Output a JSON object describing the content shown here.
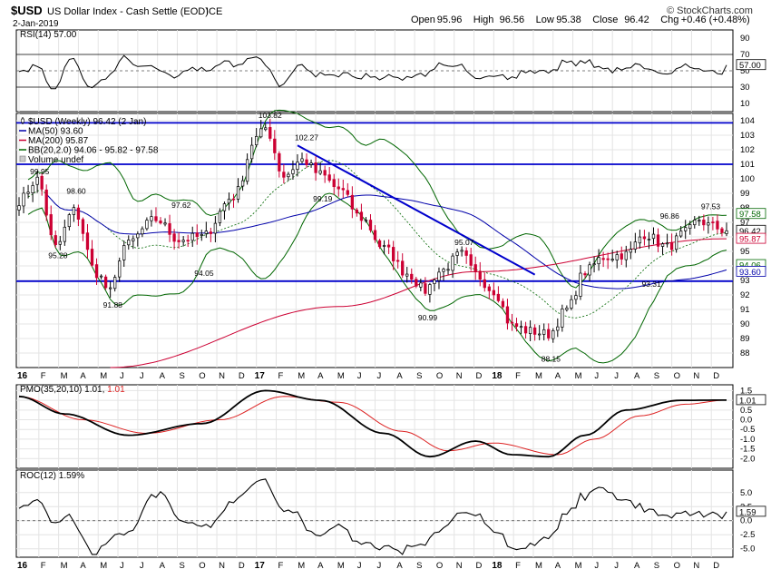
{
  "header": {
    "symbol": "$USD",
    "name": "US Dollar Index - Cash Settle (EOD)",
    "exchange": "ICE",
    "date": "2-Jan-2019",
    "site": "© StockCharts.com",
    "ohlc": [
      {
        "label": "Open",
        "value": "95.96"
      },
      {
        "label": "High",
        "value": "96.56"
      },
      {
        "label": "Low",
        "value": "95.38"
      },
      {
        "label": "Close",
        "value": "96.42"
      },
      {
        "label": "Chg",
        "value": "+0.46 (+0.48%)"
      }
    ]
  },
  "panels": {
    "rsi": {
      "label": "RSI(14) 57.00",
      "value_tag": "57.00"
    },
    "main": {
      "legend": [
        {
          "text": "$USD (Weekly) 96.42 (2 Jan)",
          "color": "#000000",
          "marker": "candle"
        },
        {
          "text": "MA(50) 93.60",
          "color": "#0000aa",
          "marker": "line"
        },
        {
          "text": "MA(200) 95.87",
          "color": "#cc0033",
          "marker": "line"
        },
        {
          "text": "BB(20,2.0) 94.06 - 95.82 - 97.58",
          "color": "#006600",
          "marker": "line"
        },
        {
          "text": "Volume undef",
          "color": "#777777",
          "marker": "box"
        }
      ],
      "tags": [
        {
          "value": "97.58",
          "color": "#006600"
        },
        {
          "value": "96.42",
          "color": "#000000"
        },
        {
          "value": "95.87",
          "color": "#cc0033"
        },
        {
          "value": "94.06",
          "color": "#006600"
        },
        {
          "value": "93.60",
          "color": "#0000aa"
        }
      ],
      "annotations": [
        "99.95",
        "98.60",
        "95.28",
        "91.88",
        "97.62",
        "94.05",
        "103.82",
        "102.27",
        "99.19",
        "95.07",
        "90.99",
        "88.15",
        "96.86",
        "97.53",
        "93.31"
      ]
    },
    "pmo": {
      "label": "PMO(35,20,10) 1.01, ",
      "label_red": "1.01",
      "value_tag": "1.01"
    },
    "roc": {
      "label": "ROC(12) 1.59%",
      "value_tag": "1.59"
    }
  },
  "months": [
    "16",
    "F",
    "M",
    "A",
    "M",
    "J",
    "J",
    "A",
    "S",
    "O",
    "N",
    "D",
    "17",
    "F",
    "M",
    "A",
    "M",
    "J",
    "J",
    "A",
    "S",
    "O",
    "N",
    "D",
    "18",
    "F",
    "M",
    "A",
    "M",
    "J",
    "J",
    "A",
    "S",
    "O",
    "N",
    "D"
  ],
  "colors": {
    "up": "#ffffff",
    "down": "#cc0033",
    "trend": "#0000cc",
    "grid": "#e4e4e4",
    "bb": "#006600",
    "ma50": "#0000aa",
    "ma200": "#cc0033"
  },
  "chart_data": {
    "type": "line",
    "title": "$USD US Dollar Index - Cash Settle (EOD)",
    "main_panel": {
      "type": "candlestick",
      "ylim": [
        87,
        104.5
      ],
      "y_ticks": [
        88,
        89,
        90,
        91,
        92,
        93,
        94,
        95,
        96,
        97,
        98,
        99,
        100,
        101,
        102,
        103,
        104
      ],
      "key_points": [
        {
          "t": 0,
          "close": 98.5
        },
        {
          "t": 4,
          "close": 99.95
        },
        {
          "t": 8,
          "close": 95.28
        },
        {
          "t": 12,
          "close": 97.8
        },
        {
          "t": 17,
          "close": 93.5
        },
        {
          "t": 20,
          "close": 92.2
        },
        {
          "t": 23,
          "close": 95.4
        },
        {
          "t": 30,
          "close": 97.2
        },
        {
          "t": 35,
          "close": 95.8
        },
        {
          "t": 40,
          "close": 96.0
        },
        {
          "t": 47,
          "close": 98.8
        },
        {
          "t": 52,
          "close": 102.8
        },
        {
          "t": 54,
          "close": 103.5
        },
        {
          "t": 58,
          "close": 100.2
        },
        {
          "t": 62,
          "close": 101.3
        },
        {
          "t": 66,
          "close": 100.3
        },
        {
          "t": 70,
          "close": 99.3
        },
        {
          "t": 75,
          "close": 97.3
        },
        {
          "t": 80,
          "close": 95.2
        },
        {
          "t": 85,
          "close": 93.5
        },
        {
          "t": 89,
          "close": 92.3
        },
        {
          "t": 92,
          "close": 93.6
        },
        {
          "t": 97,
          "close": 94.8
        },
        {
          "t": 100,
          "close": 93.4
        },
        {
          "t": 104,
          "close": 92.3
        },
        {
          "t": 108,
          "close": 89.9
        },
        {
          "t": 112,
          "close": 89.5
        },
        {
          "t": 116,
          "close": 89.3
        },
        {
          "t": 120,
          "close": 91.0
        },
        {
          "t": 124,
          "close": 93.6
        },
        {
          "t": 128,
          "close": 94.6
        },
        {
          "t": 133,
          "close": 94.8
        },
        {
          "t": 137,
          "close": 96.2
        },
        {
          "t": 142,
          "close": 95.3
        },
        {
          "t": 146,
          "close": 96.3
        },
        {
          "t": 149,
          "close": 97.2
        },
        {
          "t": 151,
          "close": 96.8
        },
        {
          "t": 155,
          "close": 96.42
        }
      ],
      "horizontal_lines": [
        92.95,
        101.0,
        103.85
      ],
      "trendline": [
        {
          "t": 61,
          "y": 102.3
        },
        {
          "t": 113,
          "y": 93.4
        }
      ],
      "ma200": [
        {
          "t": 20,
          "y": 87.0
        },
        {
          "t": 70,
          "y": 91.2
        },
        {
          "t": 100,
          "y": 93.6
        },
        {
          "t": 155,
          "y": 95.87
        }
      ]
    },
    "rsi_panel": {
      "ylim": [
        0,
        100
      ],
      "y_ticks": [
        10,
        30,
        50,
        70,
        90
      ],
      "reference_lines": [
        30,
        70
      ],
      "last": 57.0
    },
    "pmo_panel": {
      "ylim": [
        -2.5,
        1.8
      ],
      "y_ticks": [
        -2.0,
        -1.5,
        -1.0,
        -0.5,
        0.0,
        0.5,
        1.0,
        1.5
      ],
      "pmo": [
        {
          "t": 0,
          "y": 1.2
        },
        {
          "t": 10,
          "y": 0.3
        },
        {
          "t": 24,
          "y": -0.8
        },
        {
          "t": 40,
          "y": -0.2
        },
        {
          "t": 54,
          "y": 1.5
        },
        {
          "t": 66,
          "y": 1.0
        },
        {
          "t": 80,
          "y": -0.7
        },
        {
          "t": 90,
          "y": -1.9
        },
        {
          "t": 100,
          "y": -1.1
        },
        {
          "t": 108,
          "y": -1.8
        },
        {
          "t": 116,
          "y": -1.9
        },
        {
          "t": 124,
          "y": -0.8
        },
        {
          "t": 133,
          "y": 0.5
        },
        {
          "t": 145,
          "y": 1.0
        },
        {
          "t": 155,
          "y": 1.01
        }
      ],
      "signal": [
        {
          "t": 0,
          "y": 1.2
        },
        {
          "t": 14,
          "y": 0.0
        },
        {
          "t": 28,
          "y": -0.7
        },
        {
          "t": 44,
          "y": 0.0
        },
        {
          "t": 58,
          "y": 1.2
        },
        {
          "t": 70,
          "y": 0.9
        },
        {
          "t": 84,
          "y": -0.6
        },
        {
          "t": 94,
          "y": -1.6
        },
        {
          "t": 104,
          "y": -1.2
        },
        {
          "t": 118,
          "y": -1.8
        },
        {
          "t": 126,
          "y": -1.0
        },
        {
          "t": 136,
          "y": 0.2
        },
        {
          "t": 146,
          "y": 0.8
        },
        {
          "t": 155,
          "y": 1.01
        }
      ]
    },
    "roc_panel": {
      "ylim": [
        -6.5,
        9
      ],
      "y_ticks": [
        -5.0,
        -2.5,
        0.0,
        2.5,
        5.0
      ],
      "reference_lines": [
        0
      ],
      "last": 1.59
    }
  }
}
